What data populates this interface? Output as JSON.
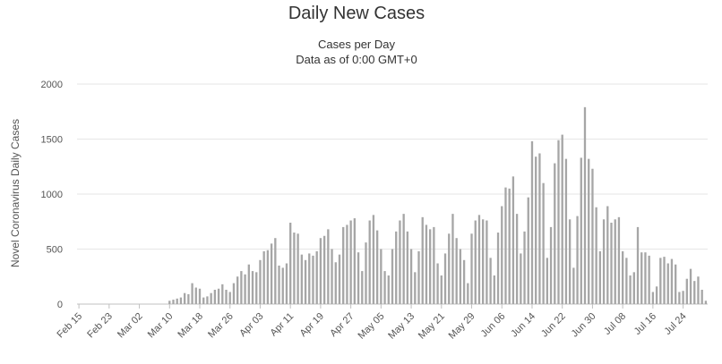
{
  "chart_data": {
    "type": "bar",
    "title": "Daily New Cases",
    "subtitle": [
      "Cases per Day",
      "Data as of 0:00 GMT+0"
    ],
    "xlabel": "",
    "ylabel": "Novel Coronavirus Daily Cases",
    "ylim": [
      0,
      2000
    ],
    "yticks": [
      0,
      500,
      1000,
      1500,
      2000
    ],
    "grid": true,
    "legend": "none",
    "bar_color": "#a6a6a6",
    "x_start_label": "Feb 15",
    "x_tick_labels": [
      "Feb 15",
      "Feb 23",
      "Mar 02",
      "Mar 10",
      "Mar 18",
      "Mar 26",
      "Apr 03",
      "Apr 11",
      "Apr 19",
      "Apr 27",
      "May 05",
      "May 13",
      "May 21",
      "May 29",
      "Jun 06",
      "Jun 14",
      "Jun 22",
      "Jun 30",
      "Jul 08",
      "Jul 16",
      "Jul 24"
    ],
    "values": [
      0,
      0,
      0,
      0,
      0,
      0,
      0,
      0,
      0,
      0,
      0,
      0,
      0,
      0,
      0,
      0,
      0,
      0,
      0,
      0,
      0,
      0,
      0,
      0,
      30,
      40,
      50,
      60,
      100,
      90,
      190,
      150,
      140,
      60,
      70,
      100,
      130,
      140,
      180,
      130,
      110,
      190,
      250,
      300,
      270,
      360,
      300,
      290,
      400,
      480,
      490,
      550,
      600,
      350,
      330,
      370,
      740,
      650,
      640,
      450,
      400,
      460,
      440,
      480,
      600,
      620,
      680,
      500,
      380,
      450,
      700,
      720,
      760,
      780,
      470,
      300,
      560,
      760,
      810,
      670,
      500,
      300,
      260,
      500,
      660,
      760,
      820,
      660,
      500,
      290,
      480,
      790,
      720,
      680,
      700,
      370,
      260,
      460,
      640,
      820,
      600,
      500,
      400,
      190,
      640,
      760,
      810,
      770,
      760,
      420,
      260,
      650,
      890,
      1060,
      1050,
      1160,
      820,
      460,
      660,
      970,
      1480,
      1340,
      1370,
      1100,
      420,
      700,
      1280,
      1490,
      1540,
      1320,
      770,
      330,
      800,
      1330,
      1790,
      1320,
      1230,
      880,
      480,
      770,
      890,
      740,
      770,
      790,
      480,
      420,
      260,
      290,
      700,
      470,
      470,
      440,
      110,
      160,
      420,
      430,
      370,
      410,
      360,
      110,
      120,
      230,
      320,
      210,
      250,
      130,
      30
    ]
  }
}
